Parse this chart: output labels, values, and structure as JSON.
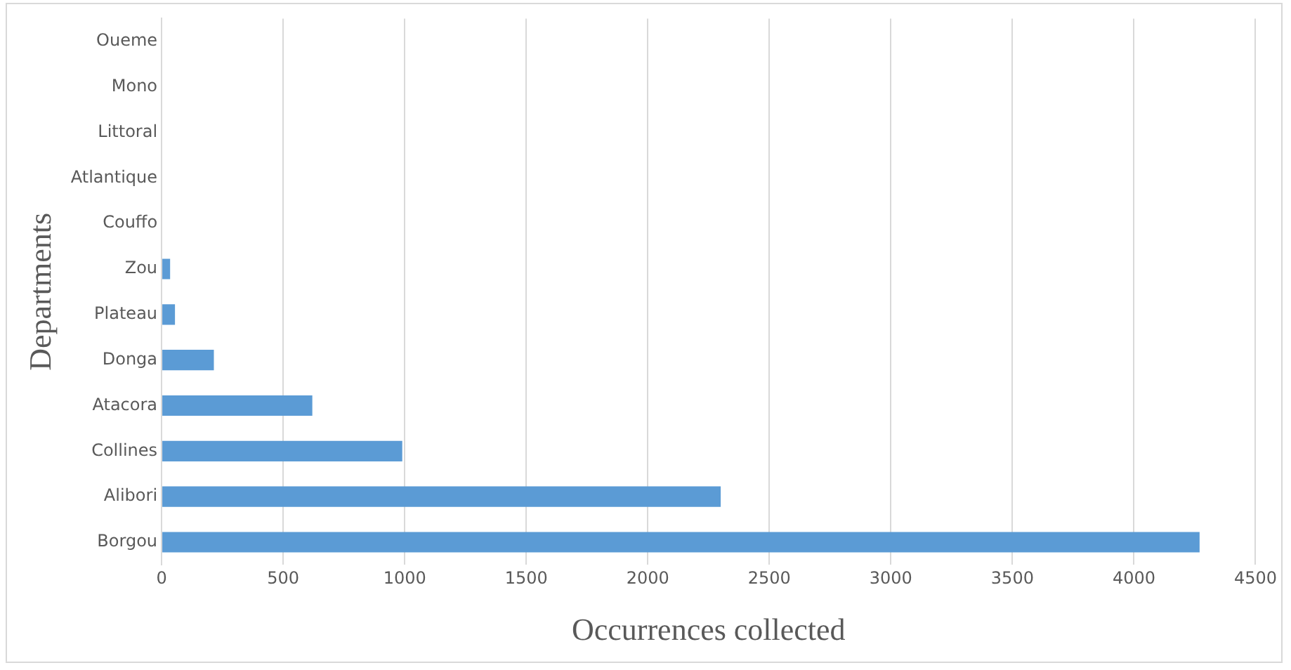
{
  "chart_data": {
    "type": "bar",
    "orientation": "horizontal",
    "xlabel": "Occurrences collected",
    "ylabel": "Departments",
    "categories": [
      "Oueme",
      "Mono",
      "Littoral",
      "Atlantique",
      "Couffo",
      "Zou",
      "Plateau",
      "Donga",
      "Atacora",
      "Collines",
      "Alibori",
      "Borgou"
    ],
    "values": [
      0,
      0,
      0,
      0,
      0,
      35,
      55,
      215,
      620,
      990,
      2300,
      4270
    ],
    "color": "#5b9bd5",
    "xlim": [
      0,
      4500
    ],
    "xticks": [
      0,
      500,
      1000,
      1500,
      2000,
      2500,
      3000,
      3500,
      4000,
      4500
    ],
    "grid": "x",
    "legend": false
  }
}
